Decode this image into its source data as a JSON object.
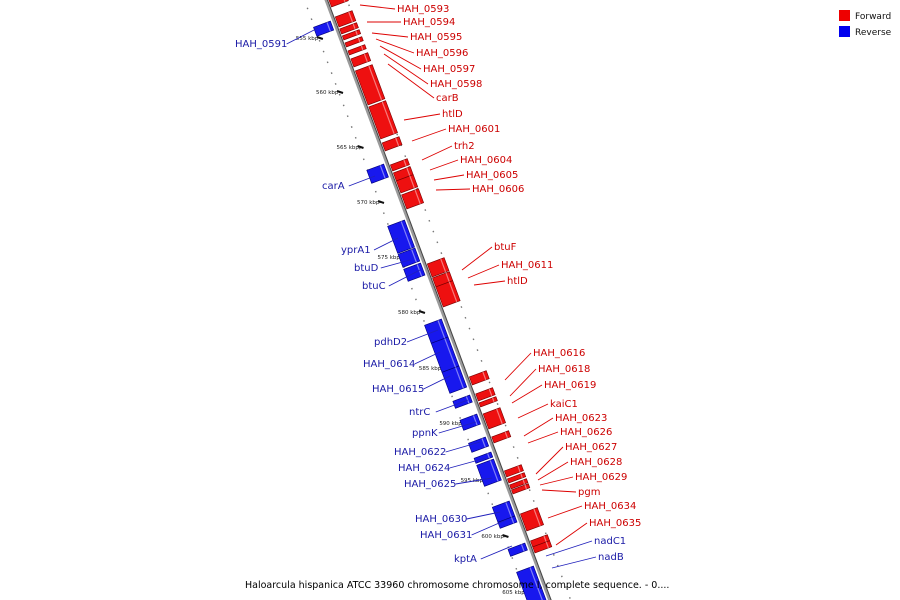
{
  "legend": {
    "forward_label": "Forward",
    "reverse_label": "Reverse",
    "forward_color": "#ee0000",
    "reverse_color": "#0000ee"
  },
  "caption": "Haloarcula hispanica ATCC 33960 chromosome chromosome I, complete sequence. - 0....",
  "ticks": [
    "555 kbp",
    "560 kbp",
    "565 kbp",
    "570 kbp",
    "575 kbp",
    "580 kbp",
    "585 kbp",
    "590 kbp",
    "595 kbp",
    "600 kbp",
    "605 kbp"
  ],
  "forward_genes": [
    "HAH_0593",
    "HAH_0594",
    "HAH_0595",
    "HAH_0596",
    "HAH_0597",
    "HAH_0598",
    "carB",
    "htlD",
    "HAH_0601",
    "trh2",
    "HAH_0604",
    "HAH_0605",
    "HAH_0606",
    "btuF",
    "HAH_0611",
    "htlD",
    "HAH_0616",
    "HAH_0618",
    "HAH_0619",
    "kaiC1",
    "HAH_0623",
    "HAH_0626",
    "HAH_0627",
    "HAH_0628",
    "HAH_0629",
    "pgm",
    "HAH_0634",
    "HAH_0635"
  ],
  "reverse_genes": [
    "HAH_0591",
    "carA",
    "yprA1",
    "btuD",
    "btuC",
    "pdhD2",
    "HAH_0614",
    "HAH_0615",
    "ntrC",
    "ppnK",
    "HAH_0622",
    "HAH_0624",
    "HAH_0625",
    "HAH_0630",
    "HAH_0631",
    "kptA",
    "nadC1",
    "nadB"
  ]
}
